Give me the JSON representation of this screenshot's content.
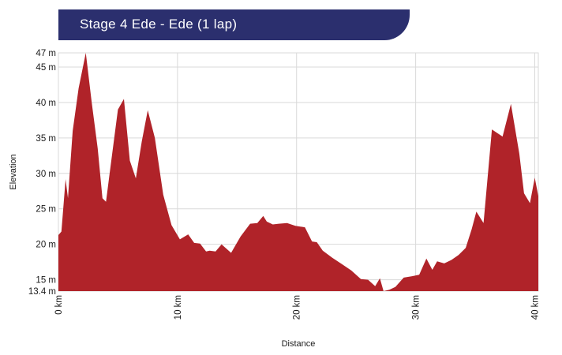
{
  "title": "Stage 4 Ede - Ede  (1 lap)",
  "chart_data": {
    "type": "area",
    "title": "Stage 4 Ede - Ede  (1 lap)",
    "xlabel": "Distance",
    "ylabel": "Elevation",
    "xlim": [
      0,
      40.3
    ],
    "ylim": [
      13.4,
      47
    ],
    "x_ticks": [
      {
        "value": 0,
        "label": "0 km"
      },
      {
        "value": 10,
        "label": "10 km"
      },
      {
        "value": 20,
        "label": "20 km"
      },
      {
        "value": 30,
        "label": "30 km"
      },
      {
        "value": 40,
        "label": "40 km"
      }
    ],
    "y_ticks": [
      {
        "value": 13.4,
        "label": "13.4 m"
      },
      {
        "value": 15,
        "label": "15 m"
      },
      {
        "value": 20,
        "label": "20 m"
      },
      {
        "value": 25,
        "label": "25 m"
      },
      {
        "value": 30,
        "label": "30 m"
      },
      {
        "value": 35,
        "label": "35 m"
      },
      {
        "value": 40,
        "label": "40 m"
      },
      {
        "value": 45,
        "label": "45 m"
      },
      {
        "value": 47,
        "label": "47 m"
      }
    ],
    "grid": true,
    "fill_color": "#b02329",
    "series": [
      {
        "name": "Elevation",
        "x": [
          0,
          0.25,
          0.6,
          0.8,
          1.2,
          1.7,
          2.3,
          2.8,
          3.3,
          3.7,
          4.0,
          4.3,
          5.0,
          5.5,
          6.0,
          6.5,
          7.0,
          7.5,
          8.1,
          8.8,
          9.5,
          10.2,
          10.9,
          11.4,
          11.9,
          12.4,
          12.7,
          13.2,
          13.7,
          14.5,
          15.3,
          16.1,
          16.7,
          17.2,
          17.5,
          18.0,
          18.5,
          19.2,
          19.9,
          20.7,
          21.3,
          21.7,
          22.2,
          23.0,
          23.8,
          24.6,
          25.4,
          26.0,
          26.6,
          27.0,
          27.3,
          27.8,
          28.3,
          29.0,
          29.7,
          30.3,
          30.9,
          31.4,
          31.8,
          32.4,
          33.0,
          33.6,
          34.2,
          34.7,
          35.1,
          35.7,
          36.4,
          37.3,
          38.0,
          38.7,
          39.1,
          39.6,
          40.0,
          40.3
        ],
        "values": [
          21.3,
          21.8,
          29.2,
          26.5,
          36.0,
          42.0,
          47.0,
          40.0,
          33.5,
          26.5,
          26.0,
          30.0,
          39.0,
          40.5,
          31.8,
          29.3,
          34.5,
          38.9,
          35.0,
          27.0,
          22.7,
          20.7,
          21.4,
          20.2,
          20.1,
          19.0,
          19.1,
          19.0,
          20.0,
          18.8,
          21.1,
          22.9,
          23.0,
          24.0,
          23.2,
          22.8,
          22.9,
          23.0,
          22.6,
          22.4,
          20.4,
          20.3,
          19.1,
          18.1,
          17.2,
          16.3,
          15.1,
          15.0,
          14.1,
          15.2,
          13.4,
          13.6,
          14.0,
          15.3,
          15.5,
          15.7,
          18.0,
          16.4,
          17.6,
          17.3,
          17.8,
          18.5,
          19.5,
          22.1,
          24.6,
          23.0,
          36.2,
          35.2,
          39.8,
          32.8,
          27.2,
          25.8,
          29.4,
          26.8
        ]
      }
    ]
  }
}
